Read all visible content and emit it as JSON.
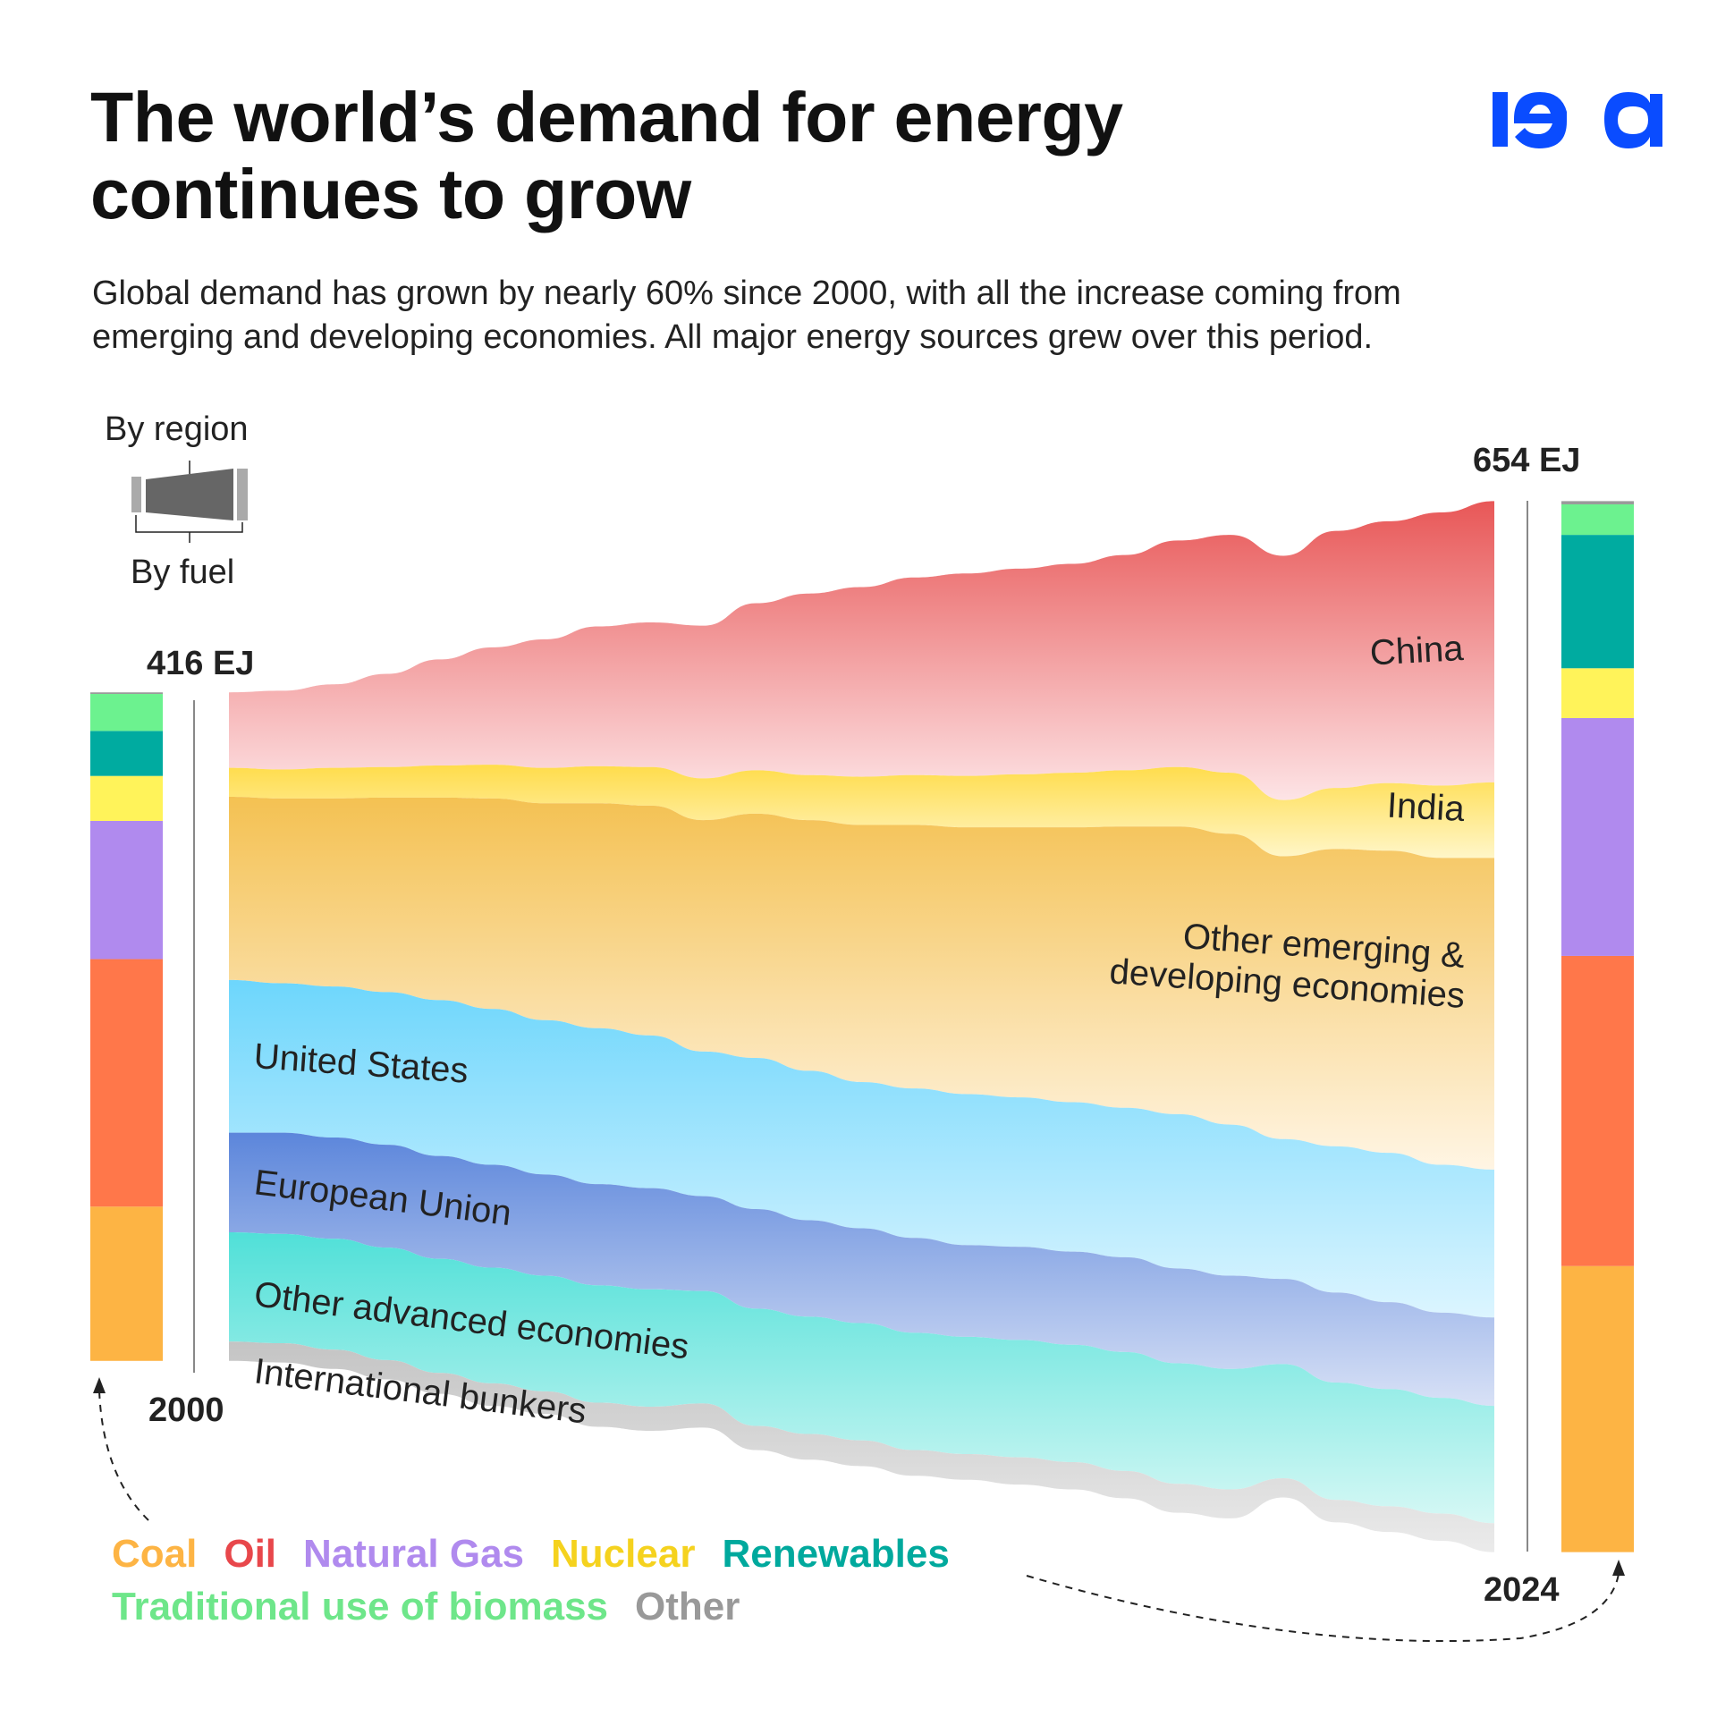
{
  "title_line1": "The world’s demand for energy",
  "title_line2": "continues to grow",
  "subtitle_line1": "Global demand has grown by nearly 60% since 2000, with all the increase coming from",
  "subtitle_line2": "emerging and developing economies. All major energy sources grew over this period.",
  "logo_text": "iea",
  "logo_color": "#0a4cff",
  "key": {
    "by_region": "By region",
    "by_fuel": "By fuel"
  },
  "chart_data": {
    "type": "area",
    "subtype": "streamgraph with stacked fuel bars at ends",
    "unit": "EJ",
    "years": [
      2000,
      2001,
      2002,
      2003,
      2004,
      2005,
      2006,
      2007,
      2008,
      2009,
      2010,
      2011,
      2012,
      2013,
      2014,
      2015,
      2016,
      2017,
      2018,
      2019,
      2020,
      2021,
      2022,
      2023,
      2024
    ],
    "start_label": "2000",
    "end_label": "2024",
    "start_total_label": "416 EJ",
    "end_total_label": "654 EJ",
    "regions": [
      {
        "name": "China",
        "color_top": "#e85757",
        "color_bottom": "#fde4e6",
        "values": [
          47,
          49,
          52,
          58,
          66,
          73,
          80,
          87,
          90,
          95,
          104,
          113,
          118,
          123,
          126,
          128,
          130,
          134,
          141,
          148,
          152,
          160,
          163,
          170,
          175
        ]
      },
      {
        "name": "India",
        "color_top": "#ffdc4a",
        "color_bottom": "#fff6c8",
        "values": [
          18,
          18,
          19,
          19,
          20,
          21,
          22,
          23,
          24,
          26,
          27,
          28,
          30,
          31,
          32,
          33,
          34,
          35,
          37,
          38,
          35,
          38,
          42,
          45,
          47
        ]
      },
      {
        "name": "Other emerging &",
        "name2": "developing economies",
        "color_top": "#f4c152",
        "color_bottom": "#fff5e4",
        "values": [
          114,
          115,
          117,
          121,
          126,
          131,
          135,
          140,
          143,
          144,
          152,
          156,
          160,
          164,
          166,
          168,
          171,
          175,
          179,
          181,
          176,
          185,
          188,
          191,
          194
        ]
      },
      {
        "name": "United States",
        "color_top": "#6dd6fc",
        "color_bottom": "#dcf5ff",
        "values": [
          95,
          93,
          94,
          95,
          97,
          97,
          96,
          97,
          95,
          90,
          94,
          93,
          91,
          93,
          94,
          93,
          93,
          93,
          96,
          94,
          87,
          91,
          93,
          92,
          92
        ]
      },
      {
        "name": "European Union",
        "color_top": "#5c86db",
        "color_bottom": "#d8e1f6",
        "values": [
          62,
          63,
          63,
          64,
          64,
          64,
          63,
          63,
          63,
          59,
          62,
          60,
          59,
          59,
          57,
          58,
          58,
          59,
          59,
          58,
          53,
          56,
          54,
          53,
          55
        ]
      },
      {
        "name": "Other advanced economies",
        "color_top": "#50e0d8",
        "color_bottom": "#d6f8f5",
        "values": [
          68,
          68,
          69,
          70,
          71,
          72,
          72,
          73,
          73,
          70,
          73,
          73,
          73,
          73,
          73,
          73,
          73,
          74,
          75,
          75,
          71,
          73,
          73,
          72,
          73
        ]
      },
      {
        "name": "International bunkers",
        "color_top": "#c4c4c4",
        "color_bottom": "#ebebeb",
        "values": [
          12,
          12,
          12,
          12,
          13,
          14,
          14,
          15,
          15,
          15,
          15,
          16,
          16,
          16,
          16,
          17,
          17,
          17,
          18,
          18,
          12,
          14,
          16,
          17,
          18
        ]
      }
    ],
    "fuels": [
      {
        "name": "Coal",
        "color": "#fdb444",
        "start": 96,
        "end": 178
      },
      {
        "name": "Oil",
        "color": "#ff774a",
        "start": 154,
        "end": 193
      },
      {
        "name": "Natural Gas",
        "color": "#b08aee",
        "start": 86,
        "end": 148
      },
      {
        "name": "Nuclear",
        "color": "#fff35a",
        "start": 28,
        "end": 31
      },
      {
        "name": "Renewables",
        "color": "#00aba0",
        "start": 28,
        "end": 83
      },
      {
        "name": "Traditional use of biomass",
        "color": "#6cf28f",
        "start": 23,
        "end": 19
      },
      {
        "name": "Other",
        "color": "#9a9a9a",
        "start": 1,
        "end": 2
      }
    ],
    "legend": [
      {
        "label": "Coal",
        "color": "#fdb444"
      },
      {
        "label": "Oil",
        "color": "#e8474b"
      },
      {
        "label": "Natural Gas",
        "color": "#b08aee"
      },
      {
        "label": "Nuclear",
        "color": "#f5d21e"
      },
      {
        "label": "Renewables",
        "color": "#00a99d"
      },
      {
        "label": "Traditional use of biomass",
        "color": "#6ee68a"
      },
      {
        "label": "Other",
        "color": "#999999"
      }
    ]
  }
}
